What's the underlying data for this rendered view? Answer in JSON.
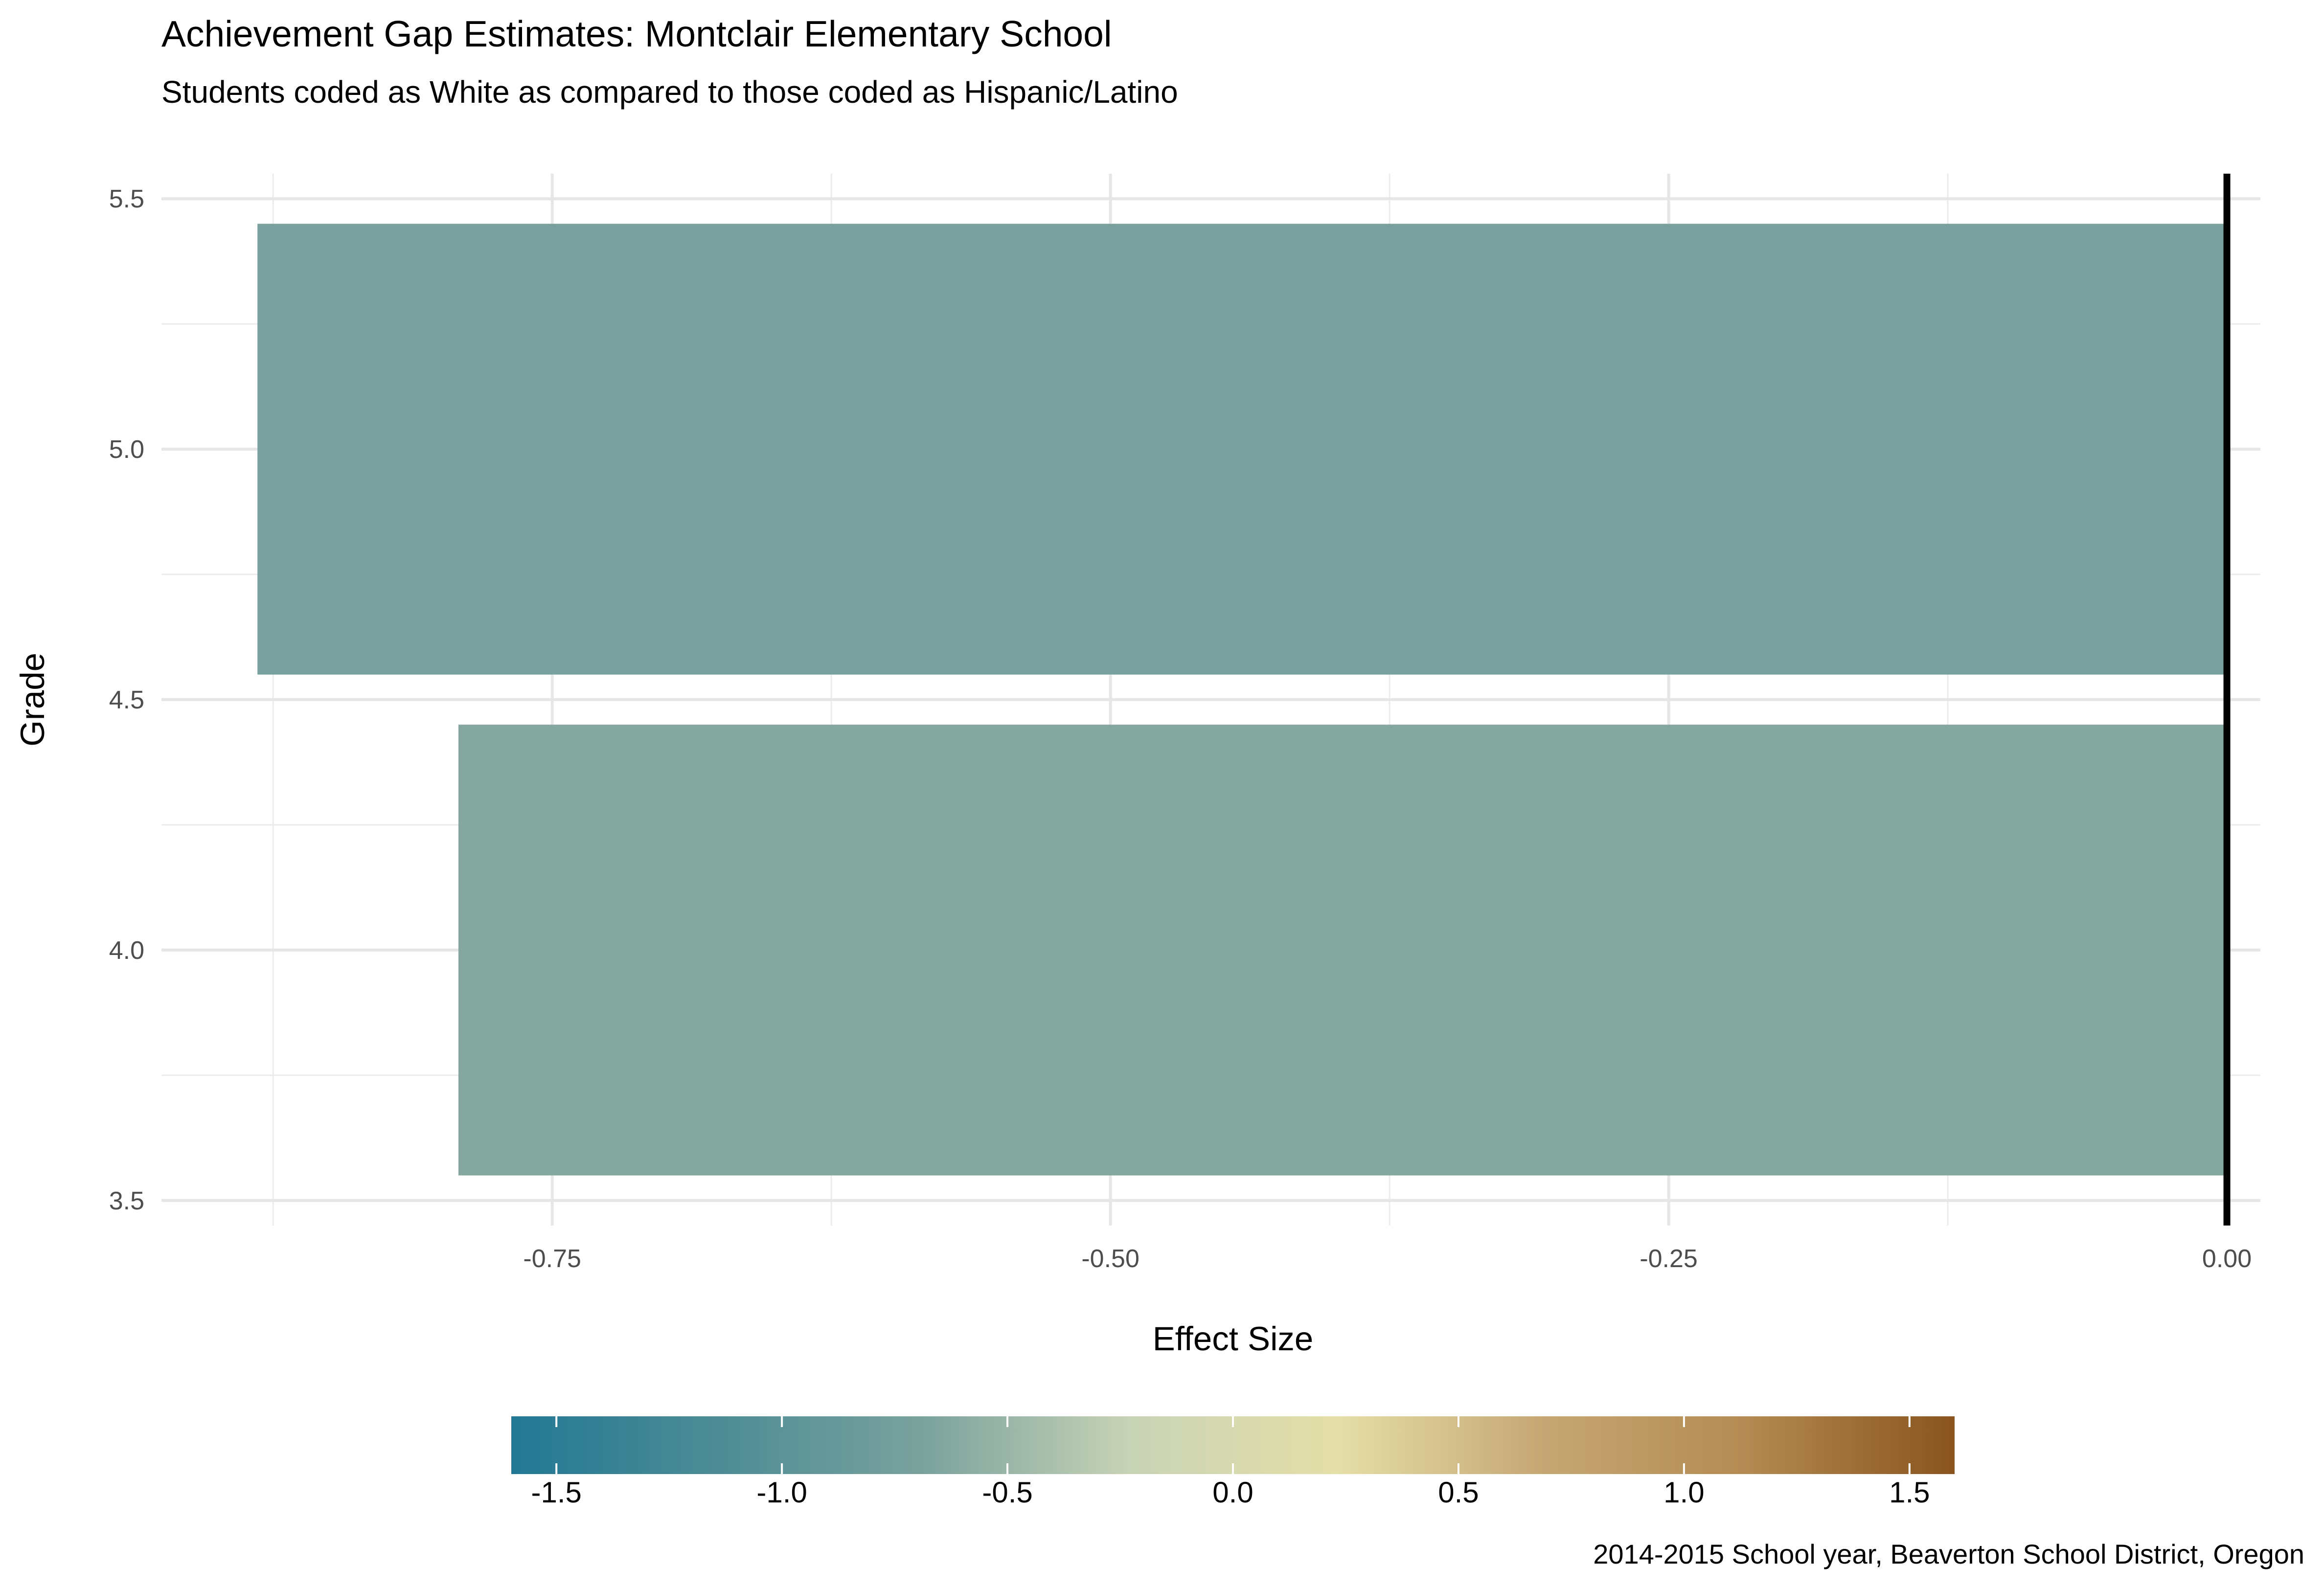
{
  "chart_data": {
    "type": "bar",
    "orientation": "horizontal",
    "title": "Achievement Gap Estimates: Montclair Elementary School",
    "subtitle": "Students coded as White as compared to those coded as Hispanic/Latino",
    "xlabel": "Effect Size",
    "ylabel": "Grade",
    "caption": "2014-2015 School year, Beaverton  School District, Oregon",
    "categories": [
      4,
      5
    ],
    "values": [
      -0.792,
      -0.882
    ],
    "bar_colors": [
      "#84a89f",
      "#78a09d"
    ],
    "xlim": [
      -0.925,
      0.015
    ],
    "ylim": [
      3.45,
      5.55
    ],
    "x_ticks": [
      -0.75,
      -0.5,
      -0.25,
      0
    ],
    "x_tick_labels": [
      "-0.75",
      "-0.50",
      "-0.25",
      "0.00"
    ],
    "y_ticks": [
      3.5,
      4.0,
      4.5,
      5.0,
      5.5
    ],
    "y_tick_labels": [
      "3.5",
      "4.0",
      "4.5",
      "5.0",
      "5.5"
    ],
    "grid": true,
    "reference_line_x": 0,
    "legend": {
      "placement": "bottom",
      "type": "colorbar",
      "range": [
        -1.6,
        1.6
      ],
      "ticks": [
        -1.5,
        -1.0,
        -0.5,
        0.0,
        0.5,
        1.0,
        1.5
      ],
      "tick_labels": [
        "-1.5",
        "-1.0",
        "-0.5",
        "0.0",
        "0.5",
        "1.0",
        "1.5"
      ],
      "colors": [
        "#227894",
        "#4d8c95",
        "#7aa29d",
        "#c8d3b6",
        "#e5dfa8",
        "#c6a774",
        "#b38a52",
        "#8a541f"
      ]
    }
  }
}
